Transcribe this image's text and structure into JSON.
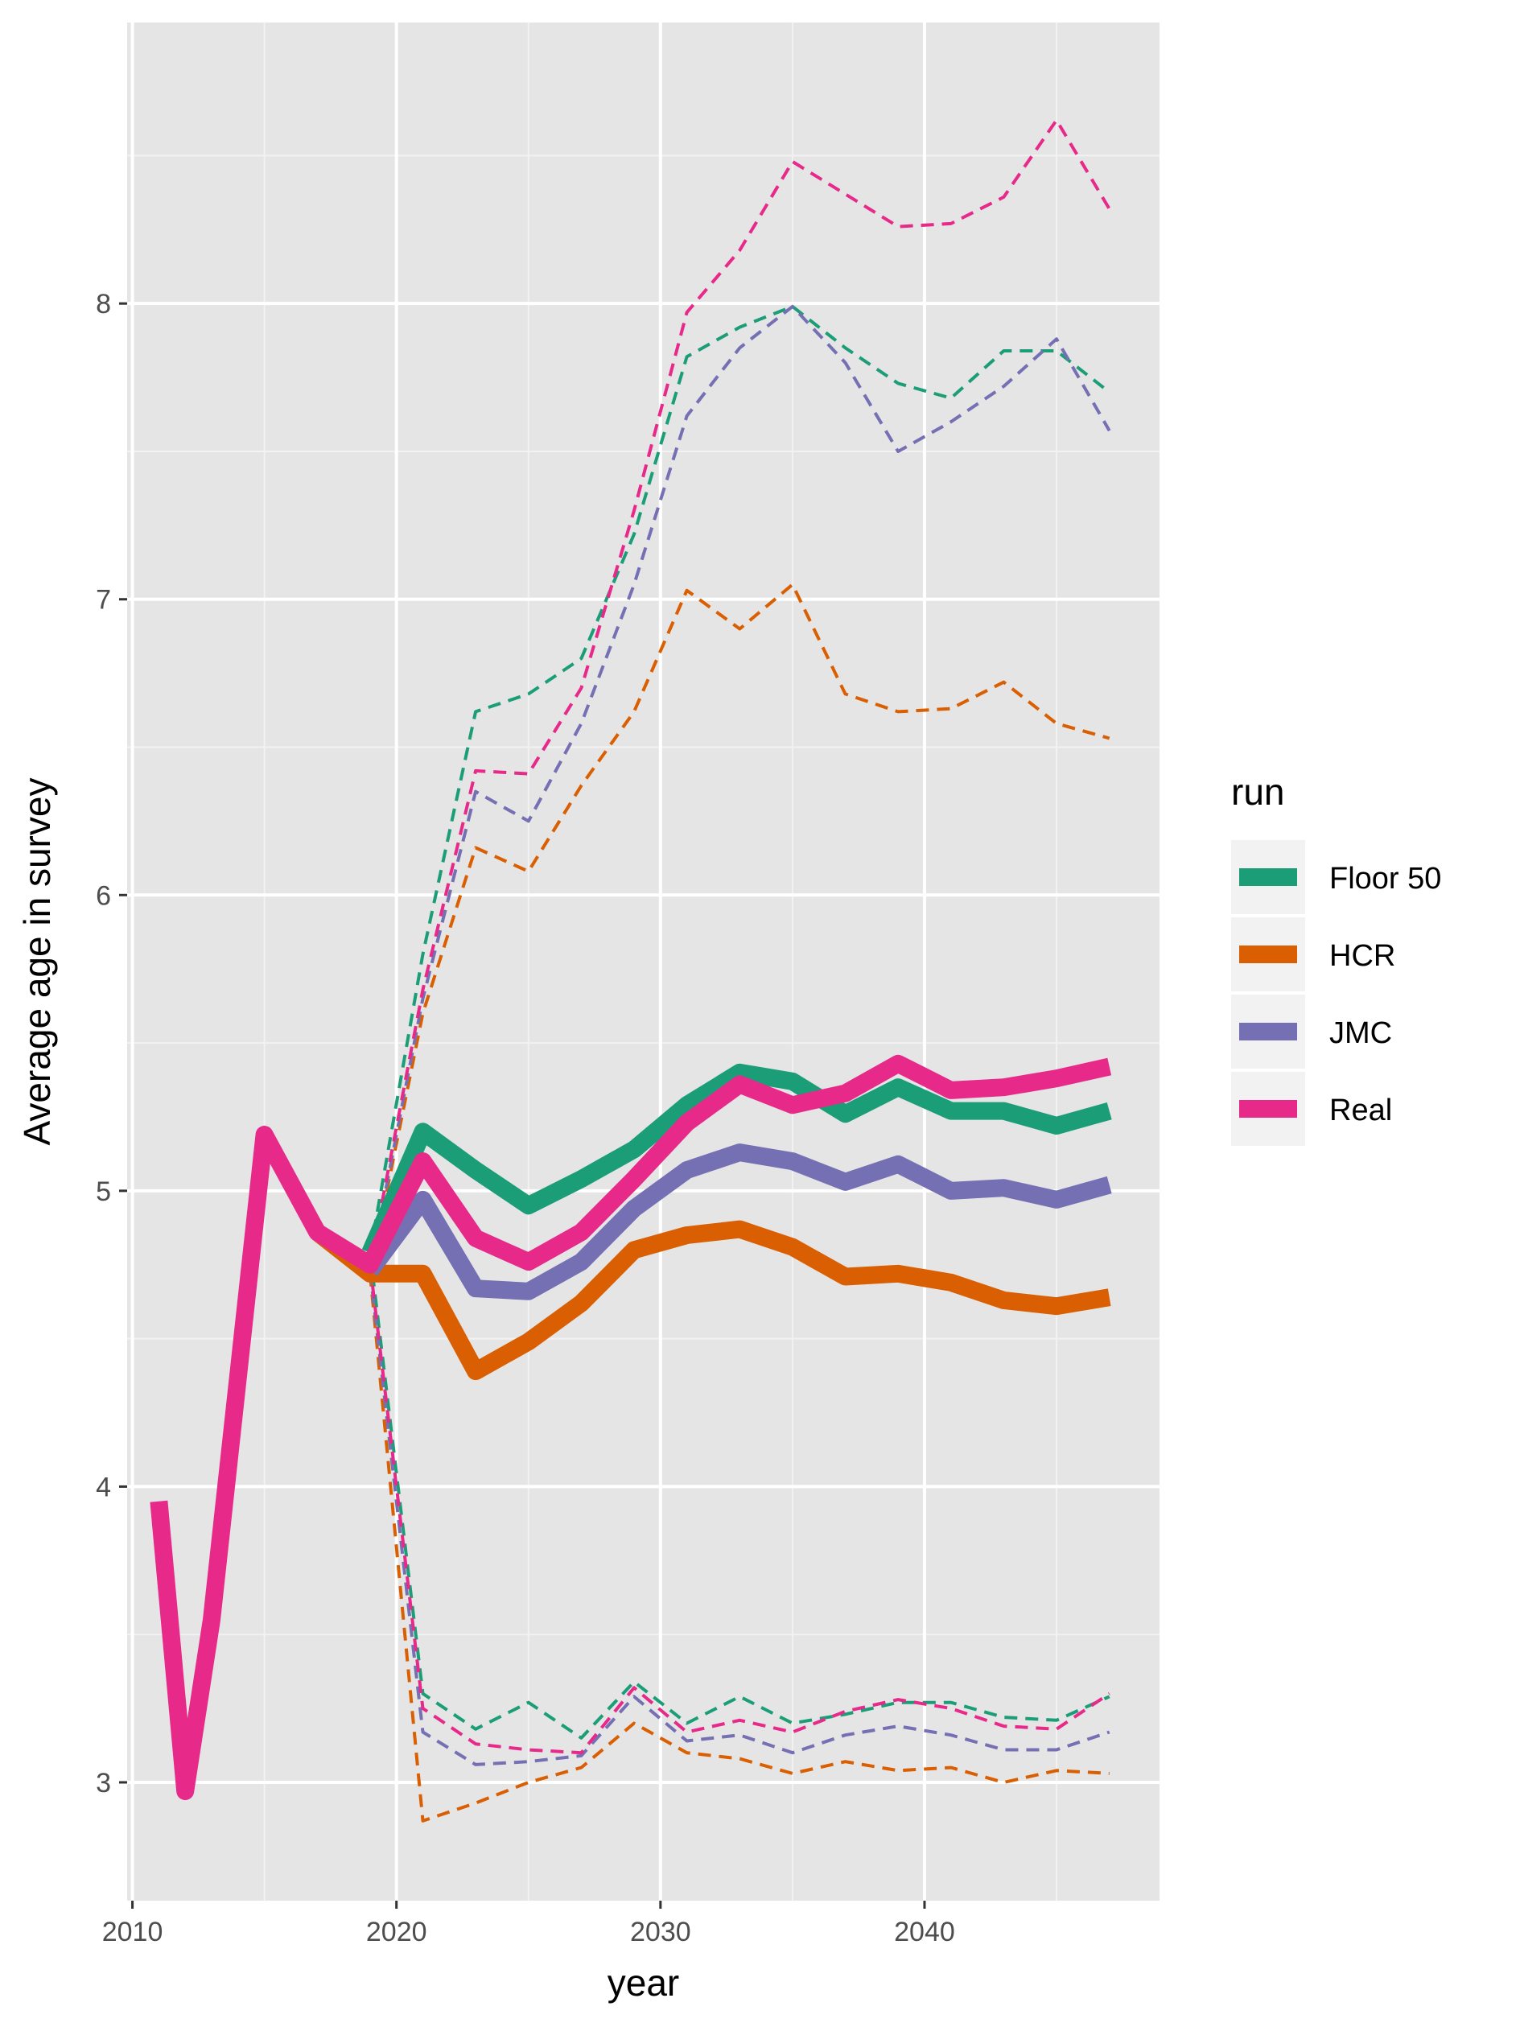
{
  "chart_data": {
    "type": "line",
    "xlabel": "year",
    "ylabel": "Average age in survey",
    "xlim": [
      2009.8,
      2048.9
    ],
    "ylim": [
      2.6,
      8.95
    ],
    "x_ticks": [
      2010,
      2020,
      2030,
      2040
    ],
    "x_tick_labels": [
      "2010",
      "2020",
      "2030",
      "2040"
    ],
    "y_ticks": [
      3,
      4,
      5,
      6,
      7,
      8
    ],
    "y_tick_labels": [
      "3",
      "4",
      "5",
      "6",
      "7",
      "8"
    ],
    "grid": true,
    "legend": {
      "title": "run",
      "position": "right",
      "entries": [
        {
          "name": "Floor 50",
          "color": "#1b9e77"
        },
        {
          "name": "HCR",
          "color": "#d95f02"
        },
        {
          "name": "JMC",
          "color": "#7570b3"
        },
        {
          "name": "Real",
          "color": "#e7298a"
        }
      ]
    },
    "series": [
      {
        "name": "Floor 50",
        "color": "#1b9e77",
        "style": "solid",
        "x": [
          2019,
          2021,
          2023,
          2025,
          2027,
          2029,
          2031,
          2033,
          2035,
          2037,
          2039,
          2041,
          2043,
          2045,
          2047
        ],
        "y": [
          4.79,
          5.2,
          5.07,
          4.95,
          5.04,
          5.14,
          5.29,
          5.4,
          5.37,
          5.26,
          5.35,
          5.27,
          5.27,
          5.22,
          5.27
        ]
      },
      {
        "name": "HCR",
        "color": "#d95f02",
        "style": "solid",
        "x": [
          2017,
          2019,
          2021,
          2023,
          2025,
          2027,
          2029,
          2031,
          2033,
          2035,
          2037,
          2039,
          2041,
          2043,
          2045,
          2047
        ],
        "y": [
          4.86,
          4.72,
          4.72,
          4.39,
          4.49,
          4.62,
          4.8,
          4.85,
          4.87,
          4.81,
          4.71,
          4.72,
          4.69,
          4.63,
          4.61,
          4.64
        ]
      },
      {
        "name": "JMC",
        "color": "#7570b3",
        "style": "solid",
        "x": [
          2019,
          2021,
          2023,
          2025,
          2027,
          2029,
          2031,
          2033,
          2035,
          2037,
          2039,
          2041,
          2043,
          2045,
          2047
        ],
        "y": [
          4.73,
          4.97,
          4.67,
          4.66,
          4.76,
          4.94,
          5.07,
          5.13,
          5.1,
          5.03,
          5.09,
          5.0,
          5.01,
          4.97,
          5.02
        ]
      },
      {
        "name": "Real",
        "color": "#e7298a",
        "style": "solid",
        "x": [
          2011,
          2012,
          2013,
          2015,
          2017,
          2019,
          2021,
          2023,
          2025,
          2027,
          2029,
          2031,
          2033,
          2035,
          2037,
          2039,
          2041,
          2043,
          2045,
          2047
        ],
        "y": [
          3.95,
          2.97,
          3.55,
          5.19,
          4.86,
          4.75,
          5.1,
          4.84,
          4.76,
          4.86,
          5.04,
          5.23,
          5.36,
          5.29,
          5.33,
          5.43,
          5.34,
          5.35,
          5.38,
          5.42
        ]
      },
      {
        "name": "Floor 50",
        "color": "#1b9e77",
        "style": "dashed",
        "x": [
          2019,
          2021,
          2023,
          2025,
          2027,
          2029,
          2031,
          2033,
          2035,
          2037,
          2039,
          2041,
          2043,
          2045,
          2047
        ],
        "y": [
          4.79,
          5.8,
          6.62,
          6.68,
          6.8,
          7.22,
          7.82,
          7.92,
          7.99,
          7.85,
          7.73,
          7.68,
          7.84,
          7.84,
          7.7
        ]
      },
      {
        "name": "HCR",
        "color": "#d95f02",
        "style": "dashed",
        "x": [
          2019,
          2021,
          2023,
          2025,
          2027,
          2029,
          2031,
          2033,
          2035,
          2037,
          2039,
          2041,
          2043,
          2045,
          2047
        ],
        "y": [
          4.72,
          5.6,
          6.16,
          6.08,
          6.37,
          6.62,
          7.03,
          6.9,
          7.05,
          6.68,
          6.62,
          6.63,
          6.72,
          6.58,
          6.53
        ]
      },
      {
        "name": "JMC",
        "color": "#7570b3",
        "style": "dashed",
        "x": [
          2019,
          2021,
          2023,
          2025,
          2027,
          2029,
          2031,
          2033,
          2035,
          2037,
          2039,
          2041,
          2043,
          2045,
          2047
        ],
        "y": [
          4.73,
          5.65,
          6.35,
          6.25,
          6.58,
          7.05,
          7.62,
          7.85,
          7.99,
          7.8,
          7.5,
          7.6,
          7.72,
          7.88,
          7.57
        ]
      },
      {
        "name": "Real",
        "color": "#e7298a",
        "style": "dashed",
        "x": [
          2019,
          2021,
          2023,
          2025,
          2027,
          2029,
          2031,
          2033,
          2035,
          2037,
          2039,
          2041,
          2043,
          2045,
          2047
        ],
        "y": [
          4.75,
          5.68,
          6.42,
          6.41,
          6.7,
          7.3,
          7.97,
          8.18,
          8.48,
          8.37,
          8.26,
          8.27,
          8.36,
          8.62,
          8.32
        ]
      },
      {
        "name": "Floor 50",
        "color": "#1b9e77",
        "style": "dashed",
        "x": [
          2019,
          2021,
          2023,
          2025,
          2027,
          2029,
          2031,
          2033,
          2035,
          2037,
          2039,
          2041,
          2043,
          2045,
          2047
        ],
        "y": [
          4.79,
          3.3,
          3.18,
          3.27,
          3.15,
          3.34,
          3.2,
          3.29,
          3.2,
          3.23,
          3.27,
          3.27,
          3.22,
          3.21,
          3.29
        ]
      },
      {
        "name": "HCR",
        "color": "#d95f02",
        "style": "dashed",
        "x": [
          2019,
          2021,
          2023,
          2025,
          2027,
          2029,
          2031,
          2033,
          2035,
          2037,
          2039,
          2041,
          2043,
          2045,
          2047
        ],
        "y": [
          4.72,
          2.87,
          2.93,
          3.0,
          3.05,
          3.2,
          3.1,
          3.08,
          3.03,
          3.07,
          3.04,
          3.05,
          3.0,
          3.04,
          3.03
        ]
      },
      {
        "name": "JMC",
        "color": "#7570b3",
        "style": "dashed",
        "x": [
          2019,
          2021,
          2023,
          2025,
          2027,
          2029,
          2031,
          2033,
          2035,
          2037,
          2039,
          2041,
          2043,
          2045,
          2047
        ],
        "y": [
          4.73,
          3.17,
          3.06,
          3.07,
          3.09,
          3.29,
          3.14,
          3.16,
          3.1,
          3.16,
          3.19,
          3.16,
          3.11,
          3.11,
          3.17
        ]
      },
      {
        "name": "Real",
        "color": "#e7298a",
        "style": "dashed",
        "x": [
          2019,
          2021,
          2023,
          2025,
          2027,
          2029,
          2031,
          2033,
          2035,
          2037,
          2039,
          2041,
          2043,
          2045,
          2047
        ],
        "y": [
          4.75,
          3.25,
          3.13,
          3.11,
          3.1,
          3.32,
          3.17,
          3.21,
          3.17,
          3.24,
          3.28,
          3.25,
          3.19,
          3.18,
          3.3
        ]
      }
    ]
  }
}
